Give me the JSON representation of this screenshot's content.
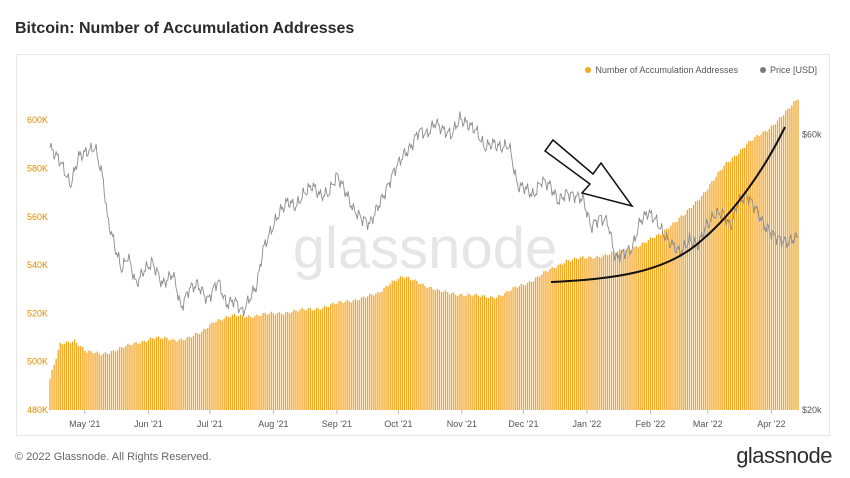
{
  "header": {
    "title": "Bitcoin: Number of Accumulation Addresses"
  },
  "footer": {
    "copyright": "© 2022 Glassnode. All Rights Reserved.",
    "logo": "glassnode"
  },
  "watermark": "glassnode",
  "colors": {
    "bars": "#f5a623",
    "price": "#8c8c8c",
    "axisLeft": "#e08a00",
    "annotation": "#111111"
  },
  "chart_data": {
    "type": "bar",
    "title": "Bitcoin: Number of Accumulation Addresses",
    "legend": [
      {
        "label": "Number of Accumulation Addresses",
        "color": "#f5a623"
      },
      {
        "label": "Price [USD]",
        "color": "#7a7a7a"
      }
    ],
    "legend_position": "top-right",
    "ylim_left": [
      480000,
      610000
    ],
    "left_ticks": [
      {
        "value": 480000,
        "label": "480K"
      },
      {
        "value": 500000,
        "label": "500K"
      },
      {
        "value": 520000,
        "label": "520K"
      },
      {
        "value": 540000,
        "label": "540K"
      },
      {
        "value": 560000,
        "label": "560K"
      },
      {
        "value": 580000,
        "label": "580K"
      },
      {
        "value": 600000,
        "label": "600K"
      }
    ],
    "right_scale": "log",
    "ylim_right": [
      20000,
      70000
    ],
    "right_ticks": [
      {
        "value": 20000,
        "label": "$20k"
      },
      {
        "value": 60000,
        "label": "$60k"
      }
    ],
    "x_range": [
      0,
      365
    ],
    "x_ticks": [
      {
        "day": 17,
        "label": "May '21"
      },
      {
        "day": 48,
        "label": "Jun '21"
      },
      {
        "day": 78,
        "label": "Jul '21"
      },
      {
        "day": 109,
        "label": "Aug '21"
      },
      {
        "day": 140,
        "label": "Sep '21"
      },
      {
        "day": 170,
        "label": "Oct '21"
      },
      {
        "day": 201,
        "label": "Nov '21"
      },
      {
        "day": 231,
        "label": "Dec '21"
      },
      {
        "day": 262,
        "label": "Jan '22"
      },
      {
        "day": 293,
        "label": "Feb '22"
      },
      {
        "day": 321,
        "label": "Mar '22"
      },
      {
        "day": 352,
        "label": "Apr '22"
      }
    ],
    "series": [
      {
        "name": "Number of Accumulation Addresses",
        "axis": "left",
        "type": "bar",
        "points": [
          [
            0,
            493000
          ],
          [
            5,
            507000
          ],
          [
            12,
            509000
          ],
          [
            18,
            504000
          ],
          [
            25,
            503000
          ],
          [
            32,
            505000
          ],
          [
            40,
            507000
          ],
          [
            50,
            510000
          ],
          [
            60,
            509000
          ],
          [
            68,
            510000
          ],
          [
            74,
            512000
          ],
          [
            80,
            517000
          ],
          [
            90,
            519000
          ],
          [
            100,
            519000
          ],
          [
            110,
            520000
          ],
          [
            120,
            521000
          ],
          [
            130,
            522000
          ],
          [
            140,
            524000
          ],
          [
            150,
            526000
          ],
          [
            160,
            528000
          ],
          [
            166,
            533000
          ],
          [
            172,
            535000
          ],
          [
            180,
            533000
          ],
          [
            185,
            531000
          ],
          [
            190,
            529000
          ],
          [
            200,
            528000
          ],
          [
            210,
            527000
          ],
          [
            218,
            527000
          ],
          [
            222,
            528000
          ],
          [
            228,
            531000
          ],
          [
            236,
            534000
          ],
          [
            244,
            538000
          ],
          [
            252,
            542000
          ],
          [
            262,
            543000
          ],
          [
            270,
            544000
          ],
          [
            280,
            546000
          ],
          [
            290,
            549000
          ],
          [
            298,
            553000
          ],
          [
            302,
            556000
          ],
          [
            310,
            561000
          ],
          [
            320,
            571000
          ],
          [
            330,
            582000
          ],
          [
            340,
            590000
          ],
          [
            350,
            596000
          ],
          [
            360,
            604000
          ],
          [
            365,
            609000
          ]
        ]
      },
      {
        "name": "Price [USD]",
        "axis": "right",
        "type": "line",
        "points": [
          [
            0,
            57000
          ],
          [
            5,
            54000
          ],
          [
            10,
            49000
          ],
          [
            14,
            55000
          ],
          [
            18,
            56000
          ],
          [
            22,
            57000
          ],
          [
            26,
            50000
          ],
          [
            28,
            43000
          ],
          [
            32,
            38000
          ],
          [
            35,
            35000
          ],
          [
            38,
            37000
          ],
          [
            42,
            33000
          ],
          [
            46,
            35000
          ],
          [
            50,
            36000
          ],
          [
            55,
            33000
          ],
          [
            60,
            34500
          ],
          [
            64,
            30000
          ],
          [
            68,
            32500
          ],
          [
            72,
            33000
          ],
          [
            77,
            31000
          ],
          [
            82,
            33500
          ],
          [
            86,
            30500
          ],
          [
            90,
            31000
          ],
          [
            94,
            29500
          ],
          [
            98,
            31500
          ],
          [
            101,
            33000
          ],
          [
            104,
            38000
          ],
          [
            108,
            41000
          ],
          [
            112,
            44000
          ],
          [
            116,
            46000
          ],
          [
            120,
            45000
          ],
          [
            124,
            47500
          ],
          [
            128,
            49000
          ],
          [
            132,
            47000
          ],
          [
            136,
            47500
          ],
          [
            140,
            51000
          ],
          [
            144,
            48000
          ],
          [
            148,
            44500
          ],
          [
            152,
            43000
          ],
          [
            156,
            42000
          ],
          [
            160,
            45000
          ],
          [
            164,
            48000
          ],
          [
            168,
            52000
          ],
          [
            172,
            55000
          ],
          [
            176,
            57000
          ],
          [
            180,
            61000
          ],
          [
            184,
            60000
          ],
          [
            188,
            63000
          ],
          [
            192,
            61000
          ],
          [
            196,
            60000
          ],
          [
            200,
            64000
          ],
          [
            204,
            62500
          ],
          [
            208,
            61000
          ],
          [
            212,
            57000
          ],
          [
            216,
            58000
          ],
          [
            220,
            57000
          ],
          [
            224,
            57500
          ],
          [
            228,
            49000
          ],
          [
            232,
            48500
          ],
          [
            236,
            47000
          ],
          [
            240,
            50000
          ],
          [
            244,
            49000
          ],
          [
            248,
            46000
          ],
          [
            252,
            47500
          ],
          [
            256,
            47000
          ],
          [
            260,
            46500
          ],
          [
            264,
            41500
          ],
          [
            268,
            43000
          ],
          [
            272,
            42500
          ],
          [
            276,
            36500
          ],
          [
            280,
            37500
          ],
          [
            284,
            38000
          ],
          [
            288,
            42500
          ],
          [
            292,
            44000
          ],
          [
            296,
            42500
          ],
          [
            300,
            40000
          ],
          [
            304,
            38500
          ],
          [
            308,
            37500
          ],
          [
            312,
            39500
          ],
          [
            316,
            38500
          ],
          [
            320,
            41500
          ],
          [
            324,
            43500
          ],
          [
            328,
            44000
          ],
          [
            332,
            41500
          ],
          [
            336,
            46000
          ],
          [
            340,
            47000
          ],
          [
            344,
            45000
          ],
          [
            348,
            42000
          ],
          [
            352,
            40500
          ],
          [
            356,
            39500
          ],
          [
            360,
            39000
          ],
          [
            365,
            40000
          ]
        ]
      }
    ],
    "annotations": [
      {
        "type": "arrow",
        "direction": "down-right",
        "from_day": 242,
        "to_day": 287
      },
      {
        "type": "curve",
        "description": "accelerating upward trend curve",
        "from_day": 247,
        "to_day": 360
      }
    ]
  }
}
